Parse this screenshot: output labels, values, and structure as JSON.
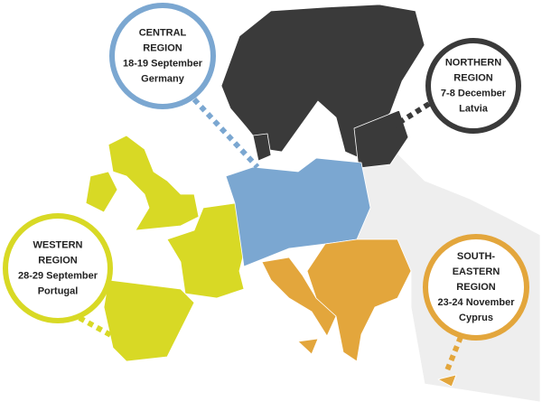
{
  "regions": [
    {
      "title_lines": [
        "CENTRAL",
        "REGION"
      ],
      "dates": "18-19 September",
      "country": "Germany"
    },
    {
      "title_lines": [
        "NORTHERN",
        "REGION"
      ],
      "dates": "7-8 December",
      "country": "Latvia"
    },
    {
      "title_lines": [
        "WESTERN",
        "REGION"
      ],
      "dates": "28-29 September",
      "country": "Portugal"
    },
    {
      "title_lines": [
        "SOUTH-",
        "EASTERN",
        "REGION"
      ],
      "dates": "23-24 November",
      "country": "Cyprus"
    }
  ]
}
